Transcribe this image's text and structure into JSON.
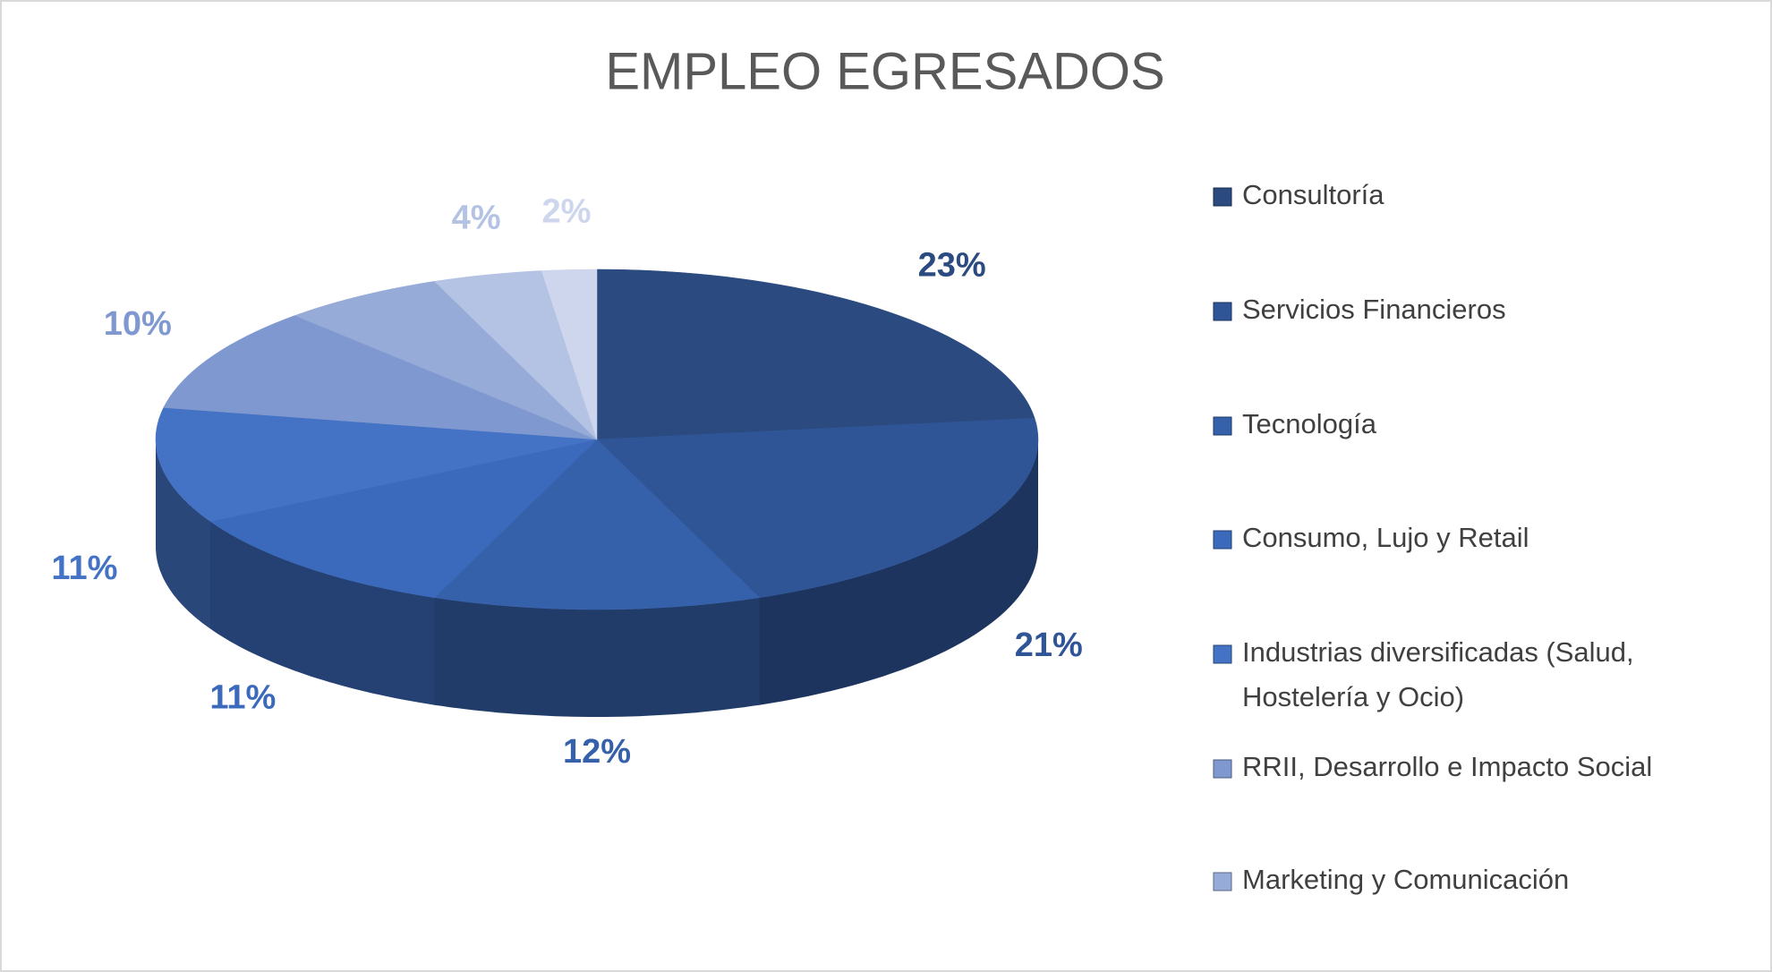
{
  "chart_data": {
    "type": "pie",
    "title": "EMPLEO EGRESADOS",
    "categories": [
      "Consultoría",
      "Servicios Financieros",
      "Tecnología",
      "Consumo, Lujo y Retail",
      "Industrias diversificadas (Salud, Hostelería y Ocio)",
      "RRII, Desarrollo e Impacto Social",
      "Marketing y Comunicación",
      null,
      null
    ],
    "values": [
      23,
      21,
      12,
      11,
      11,
      10,
      6,
      4,
      2
    ],
    "value_labels": [
      "23%",
      "21%",
      "12%",
      "11%",
      "11%",
      "10%",
      null,
      "4%",
      "2%"
    ],
    "colors": [
      "#2a4a80",
      "#2f5597",
      "#3560aa",
      "#3b69bb",
      "#4472c4",
      "#7f98cf",
      "#97abd8",
      "#b4c2e4",
      "#cdd6ec"
    ],
    "legend": "right"
  }
}
